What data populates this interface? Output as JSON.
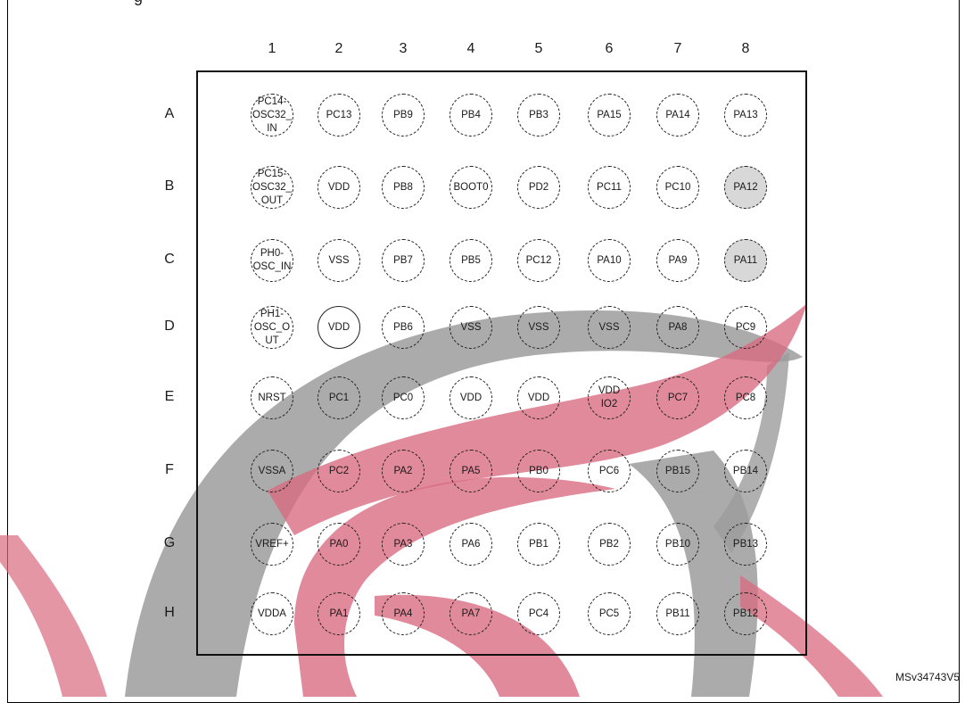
{
  "header_cut_text": "g",
  "columns": [
    "1",
    "2",
    "3",
    "4",
    "5",
    "6",
    "7",
    "8"
  ],
  "rows": [
    {
      "label": "A",
      "balls": [
        {
          "name": "PC14-\nOSC32_\nIN"
        },
        {
          "name": "PC13"
        },
        {
          "name": "PB9"
        },
        {
          "name": "PB4"
        },
        {
          "name": "PB3"
        },
        {
          "name": "PA15"
        },
        {
          "name": "PA14"
        },
        {
          "name": "PA13"
        }
      ]
    },
    {
      "label": "B",
      "balls": [
        {
          "name": "PC15-\nOSC32_\nOUT"
        },
        {
          "name": "VDD"
        },
        {
          "name": "PB8"
        },
        {
          "name": "BOOT0"
        },
        {
          "name": "PD2"
        },
        {
          "name": "PC11"
        },
        {
          "name": "PC10"
        },
        {
          "name": "PA12",
          "shaded": true
        }
      ]
    },
    {
      "label": "C",
      "balls": [
        {
          "name": "PH0-\nOSC_IN"
        },
        {
          "name": "VSS"
        },
        {
          "name": "PB7"
        },
        {
          "name": "PB5"
        },
        {
          "name": "PC12"
        },
        {
          "name": "PA10"
        },
        {
          "name": "PA9"
        },
        {
          "name": "PA11",
          "shaded": true
        }
      ]
    },
    {
      "label": "D",
      "balls": [
        {
          "name": "PH1-\nOSC_O\nUT"
        },
        {
          "name": "VDD",
          "solid": true
        },
        {
          "name": "PB6"
        },
        {
          "name": "VSS"
        },
        {
          "name": "VSS"
        },
        {
          "name": "VSS"
        },
        {
          "name": "PA8"
        },
        {
          "name": "PC9"
        }
      ]
    },
    {
      "label": "E",
      "balls": [
        {
          "name": "NRST"
        },
        {
          "name": "PC1"
        },
        {
          "name": "PC0"
        },
        {
          "name": "VDD"
        },
        {
          "name": "VDD"
        },
        {
          "name": "VDD\nIO2"
        },
        {
          "name": "PC7"
        },
        {
          "name": "PC8"
        }
      ]
    },
    {
      "label": "F",
      "balls": [
        {
          "name": "VSSA"
        },
        {
          "name": "PC2"
        },
        {
          "name": "PA2"
        },
        {
          "name": "PA5"
        },
        {
          "name": "PB0"
        },
        {
          "name": "PC6"
        },
        {
          "name": "PB15"
        },
        {
          "name": "PB14"
        }
      ]
    },
    {
      "label": "G",
      "balls": [
        {
          "name": "VREF+"
        },
        {
          "name": "PA0"
        },
        {
          "name": "PA3"
        },
        {
          "name": "PA6"
        },
        {
          "name": "PB1"
        },
        {
          "name": "PB2"
        },
        {
          "name": "PB10"
        },
        {
          "name": "PB13"
        }
      ]
    },
    {
      "label": "H",
      "balls": [
        {
          "name": "VDDA"
        },
        {
          "name": "PA1"
        },
        {
          "name": "PA4"
        },
        {
          "name": "PA7"
        },
        {
          "name": "PC4"
        },
        {
          "name": "PC5"
        },
        {
          "name": "PB11"
        },
        {
          "name": "PB12"
        }
      ]
    }
  ],
  "reference_code": "MSv34743V5",
  "colors": {
    "shaded_ball": "#c8c8c8",
    "watermark_red": "#d9697f",
    "watermark_gray": "#9c9c9c"
  }
}
